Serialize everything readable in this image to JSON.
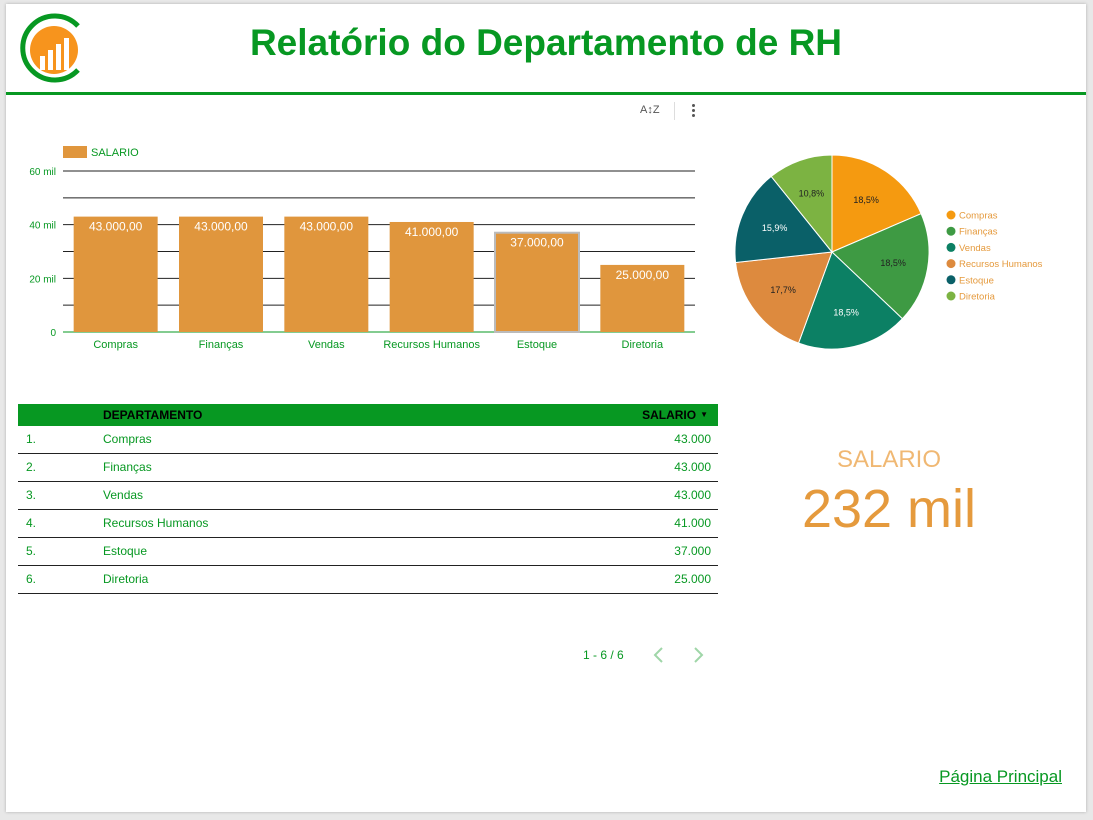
{
  "header": {
    "title": "Relatório do Departamento de RH"
  },
  "toolbar": {
    "sort_label": "A↕Z"
  },
  "colors": {
    "brand_green": "#079822",
    "bar_orange": "#e0963d",
    "accent_orange": "#e59a3d"
  },
  "chart_data": [
    {
      "type": "bar",
      "categories": [
        "Compras",
        "Finanças",
        "Vendas",
        "Recursos Humanos",
        "Estoque",
        "Diretoria"
      ],
      "series": [
        {
          "name": "SALARIO",
          "values": [
            43000,
            43000,
            43000,
            41000,
            37000,
            25000
          ]
        }
      ],
      "data_labels": [
        "43.000,00",
        "43.000,00",
        "43.000,00",
        "41.000,00",
        "37.000,00",
        "25.000,00"
      ],
      "yticks": [
        0,
        20000,
        40000,
        60000
      ],
      "ytick_labels": [
        "0",
        "20 mil",
        "40 mil",
        "60 mil"
      ],
      "ylim": [
        0,
        60000
      ],
      "legend": "top-left",
      "grid": true
    },
    {
      "type": "pie",
      "labels": [
        "Compras",
        "Finanças",
        "Vendas",
        "Recursos Humanos",
        "Estoque",
        "Diretoria"
      ],
      "values": [
        43000,
        43000,
        43000,
        41000,
        37000,
        25000
      ],
      "percent_labels": [
        "18,5%",
        "18,5%",
        "18,5%",
        "17,7%",
        "15,9%",
        "10,8%"
      ],
      "colors": [
        "#f59a10",
        "#3e9a43",
        "#0c8064",
        "#dd8a3e",
        "#0a6068",
        "#7cb342"
      ],
      "legend": "right"
    }
  ],
  "table": {
    "headers": {
      "dept": "DEPARTAMENTO",
      "salary": "SALARIO"
    },
    "rows": [
      {
        "idx": "1.",
        "dept": "Compras",
        "salary": "43.000"
      },
      {
        "idx": "2.",
        "dept": "Finanças",
        "salary": "43.000"
      },
      {
        "idx": "3.",
        "dept": "Vendas",
        "salary": "43.000"
      },
      {
        "idx": "4.",
        "dept": "Recursos Humanos",
        "salary": "41.000"
      },
      {
        "idx": "5.",
        "dept": "Estoque",
        "salary": "37.000"
      },
      {
        "idx": "6.",
        "dept": "Diretoria",
        "salary": "25.000"
      }
    ],
    "pagination": "1 - 6 / 6"
  },
  "scorecard": {
    "label": "SALARIO",
    "value": "232 mil"
  },
  "footer": {
    "link_label": "Página Principal"
  }
}
